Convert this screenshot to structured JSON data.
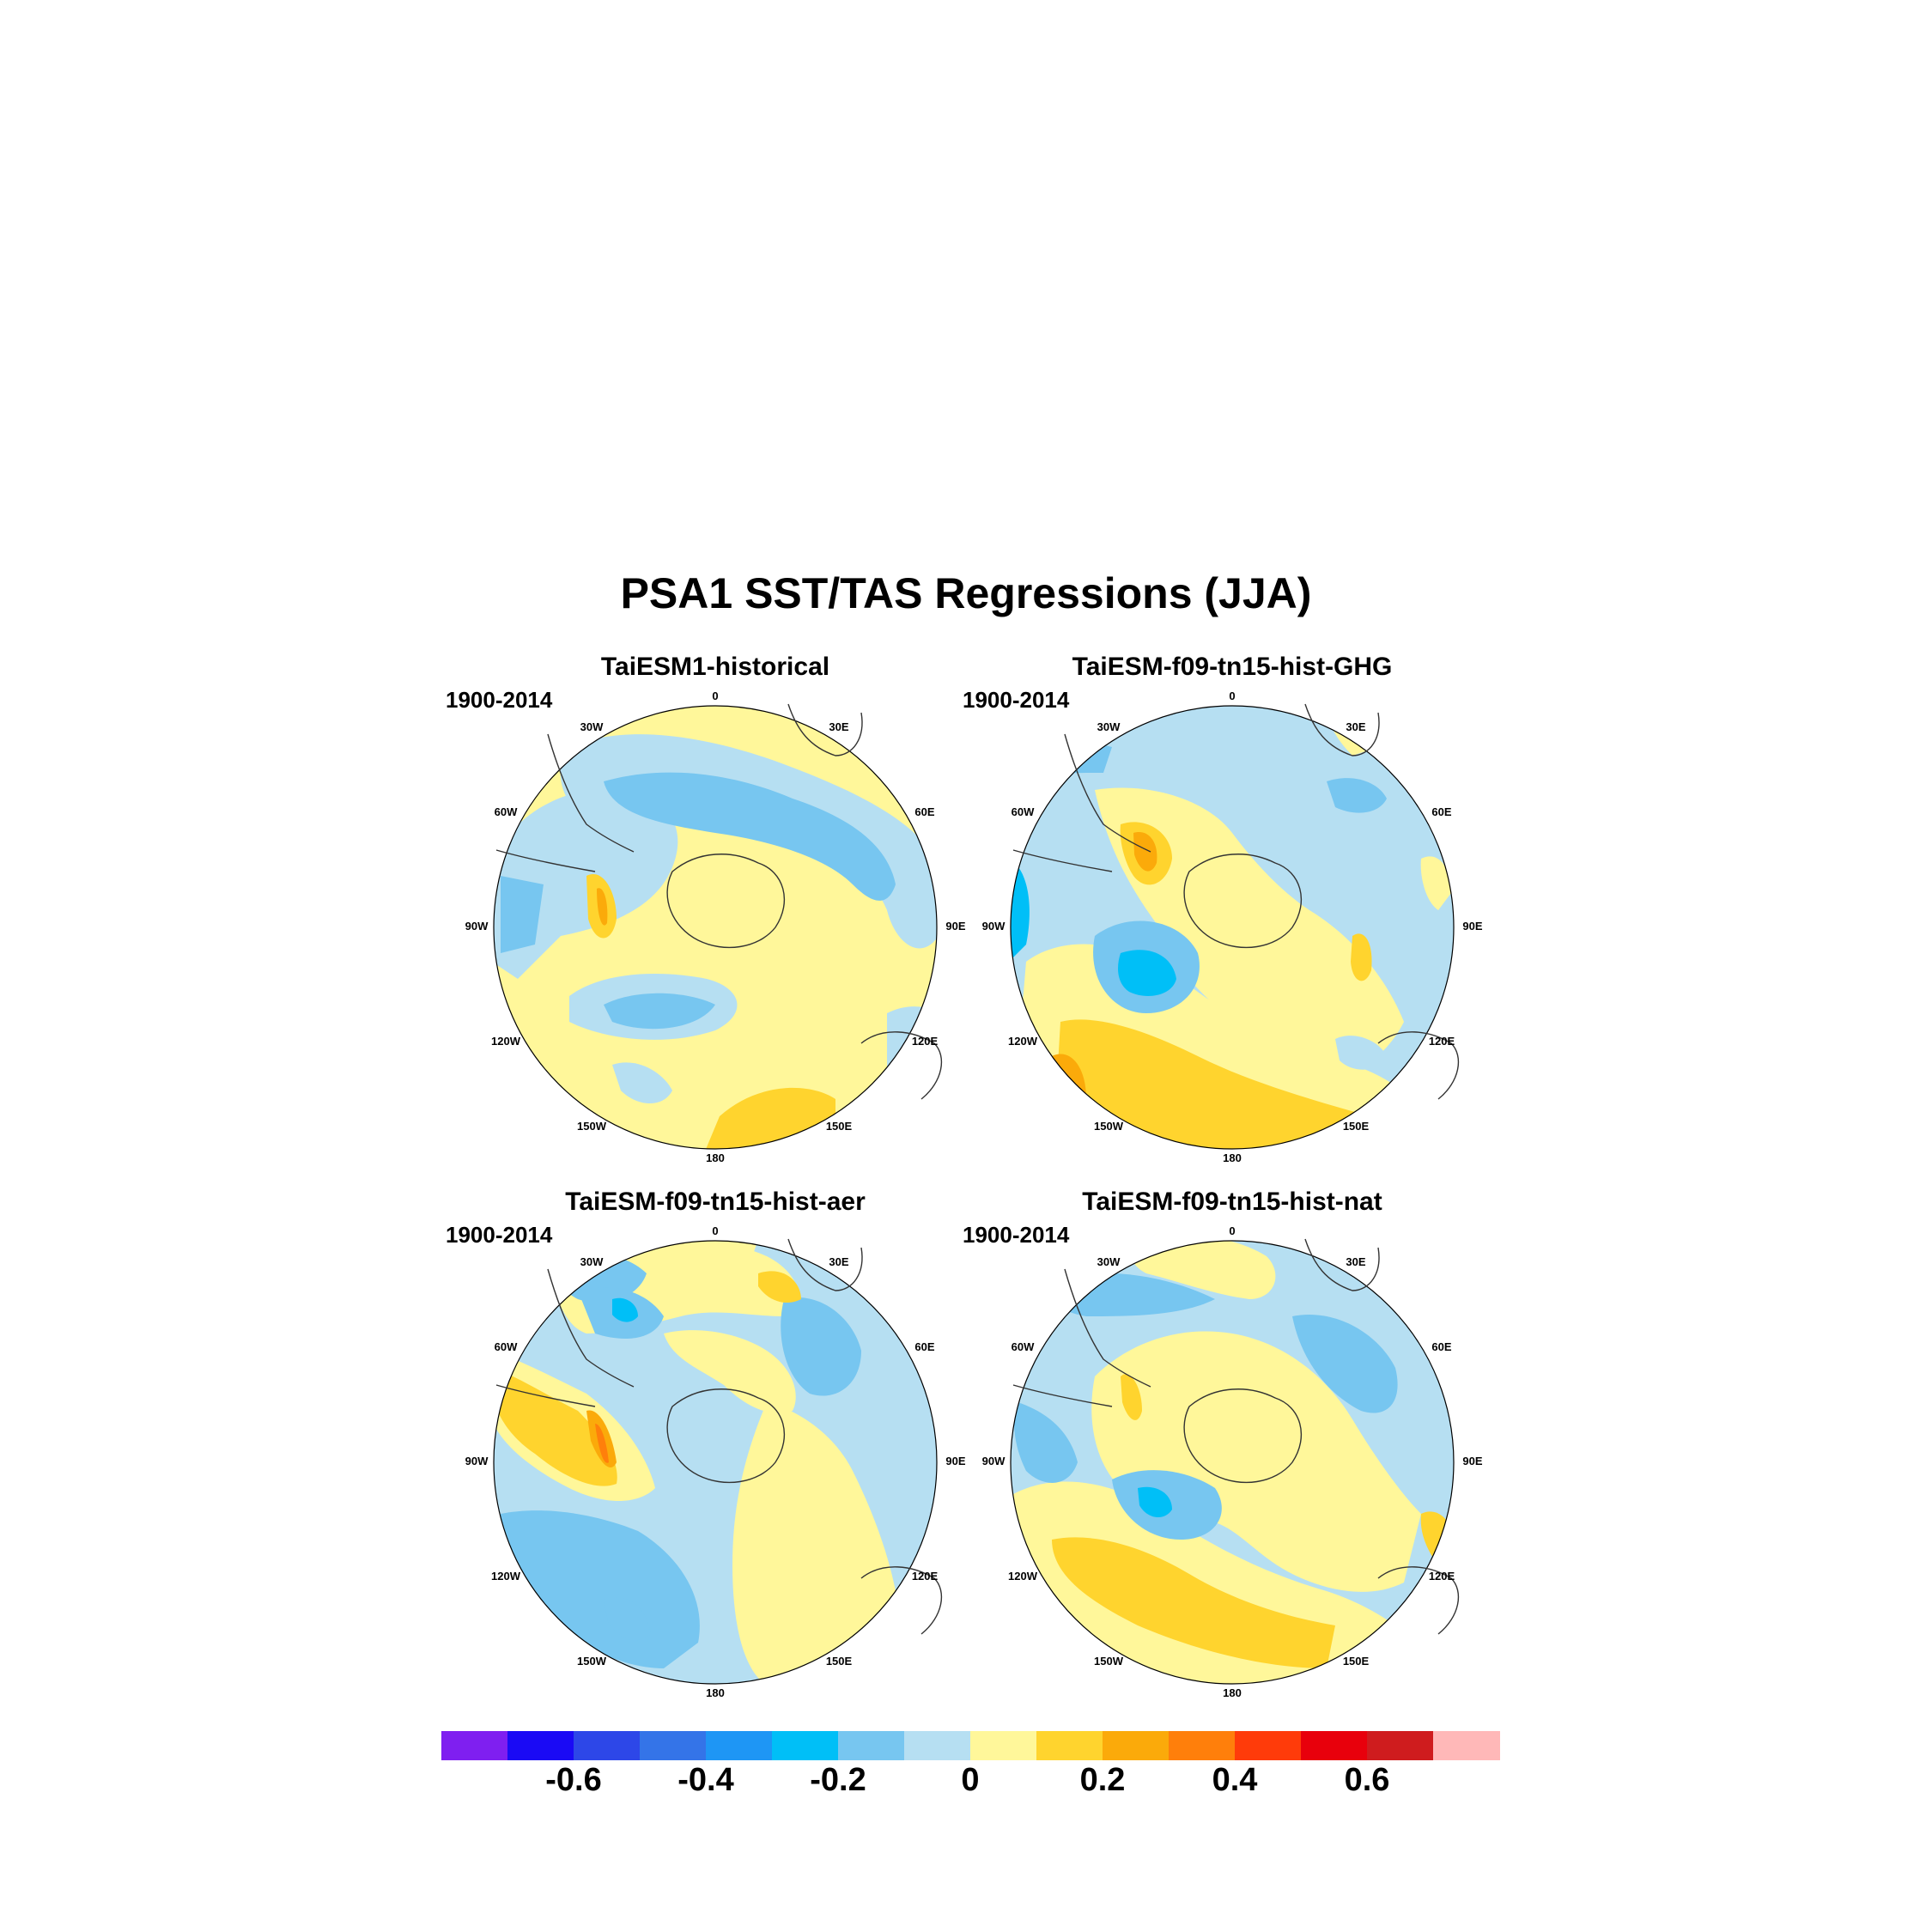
{
  "title": "PSA1 SST/TAS Regressions (JJA)",
  "panels": [
    {
      "title": "TaiESM1-historical",
      "period": "1900-2014"
    },
    {
      "title": "TaiESM-f09-tn15-hist-GHG",
      "period": "1900-2014"
    },
    {
      "title": "TaiESM-f09-tn15-hist-aer",
      "period": "1900-2014"
    },
    {
      "title": "TaiESM-f09-tn15-hist-nat",
      "period": "1900-2014"
    }
  ],
  "map_labels": [
    "0",
    "30E",
    "60E",
    "90E",
    "120E",
    "150E",
    "180",
    "150W",
    "120W",
    "90W",
    "60W",
    "30W"
  ],
  "colorbar": {
    "colors": [
      "#7f1ff0",
      "#1a0af5",
      "#2d47e8",
      "#3474e8",
      "#1e96f5",
      "#00bff7",
      "#77c6f0",
      "#b6dff2",
      "#fff79a",
      "#ffd42e",
      "#fbaa0a",
      "#ff7f0b",
      "#ff3b0a",
      "#e8000c",
      "#cf1c1e",
      "#ffb8b8"
    ],
    "tick_labels": [
      "-0.6",
      "-0.4",
      "-0.2",
      "0",
      "0.2",
      "0.4",
      "0.6"
    ],
    "tick_values": [
      -0.6,
      -0.4,
      -0.2,
      0,
      0.2,
      0.4,
      0.6
    ],
    "min": -0.8,
    "max": 0.8
  },
  "colors": {
    "light_blue": "#b6dff2",
    "mid_blue": "#77c6f0",
    "cyan": "#00bff7",
    "light_yellow": "#fff79a",
    "yellow": "#ffd42e",
    "orange": "#fbaa0a",
    "dark_orange": "#ff7f0b"
  }
}
